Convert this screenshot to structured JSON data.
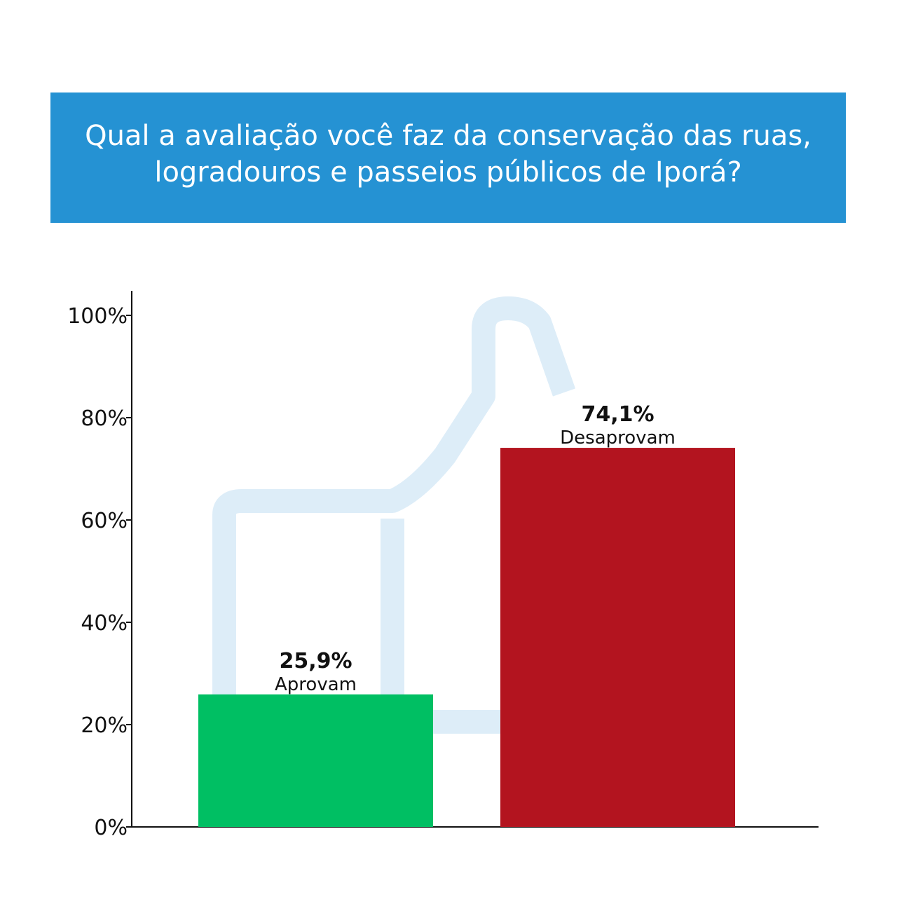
{
  "header": {
    "title": "Qual a avaliação você faz da conservação das ruas, logradouros e passeios públicos de Iporá?"
  },
  "colors": {
    "header_bg": "#2592d3",
    "watermark": "#ddedf8"
  },
  "watermark_icon": "thumbs-up-icon",
  "chart_data": {
    "type": "bar",
    "categories": [
      "Aprovam",
      "Desaprovam"
    ],
    "values": [
      25.9,
      74.1
    ],
    "value_labels": [
      "25,9%",
      "74,1%"
    ],
    "colors": [
      "#00bf63",
      "#b3141f"
    ],
    "ylim": [
      0,
      100
    ],
    "yticks": [
      0,
      20,
      40,
      60,
      80,
      100
    ],
    "ytick_labels": [
      "0%",
      "20%",
      "40%",
      "60%",
      "80%",
      "100%"
    ],
    "grid": false,
    "legend": "none"
  }
}
